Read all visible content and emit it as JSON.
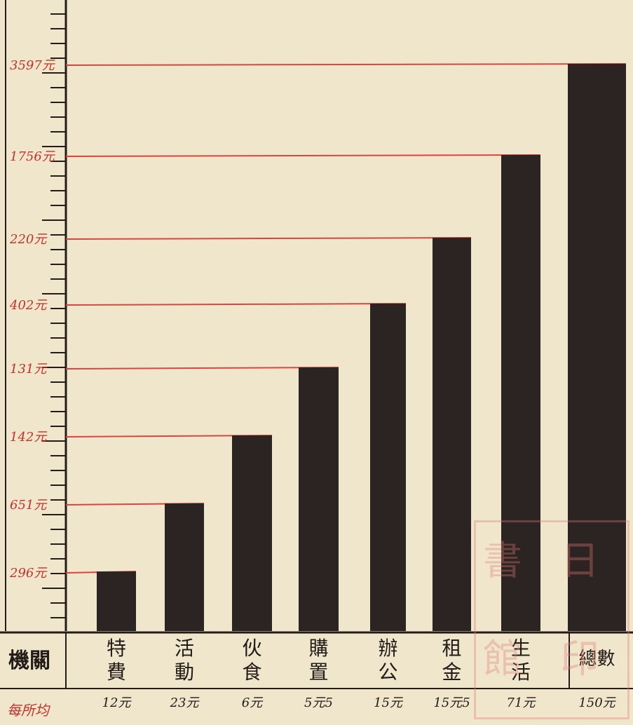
{
  "chart_data": {
    "type": "bar",
    "categories": [
      "特費",
      "活動",
      "伙食",
      "購置",
      "辦公",
      "租金",
      "生活",
      "總數"
    ],
    "values": [
      296,
      651,
      142,
      131,
      402,
      220,
      1756,
      3597
    ],
    "value_labels": [
      "296元",
      "651元",
      "142元",
      "131元",
      "402元",
      "220元",
      "1756元",
      "3597元"
    ],
    "row_header": "機關",
    "footer_label": "每所均",
    "footer_values": [
      "12元",
      "23元",
      "6元",
      "5元5",
      "15元",
      "15元5",
      "71元",
      "150元"
    ],
    "colors": {
      "bar": "#2b2422",
      "guide": "#d9463f",
      "axis": "#231c18",
      "label": "#c8302a"
    },
    "seal": {
      "chars": [
        "書",
        "館",
        "印",
        "日"
      ]
    }
  }
}
